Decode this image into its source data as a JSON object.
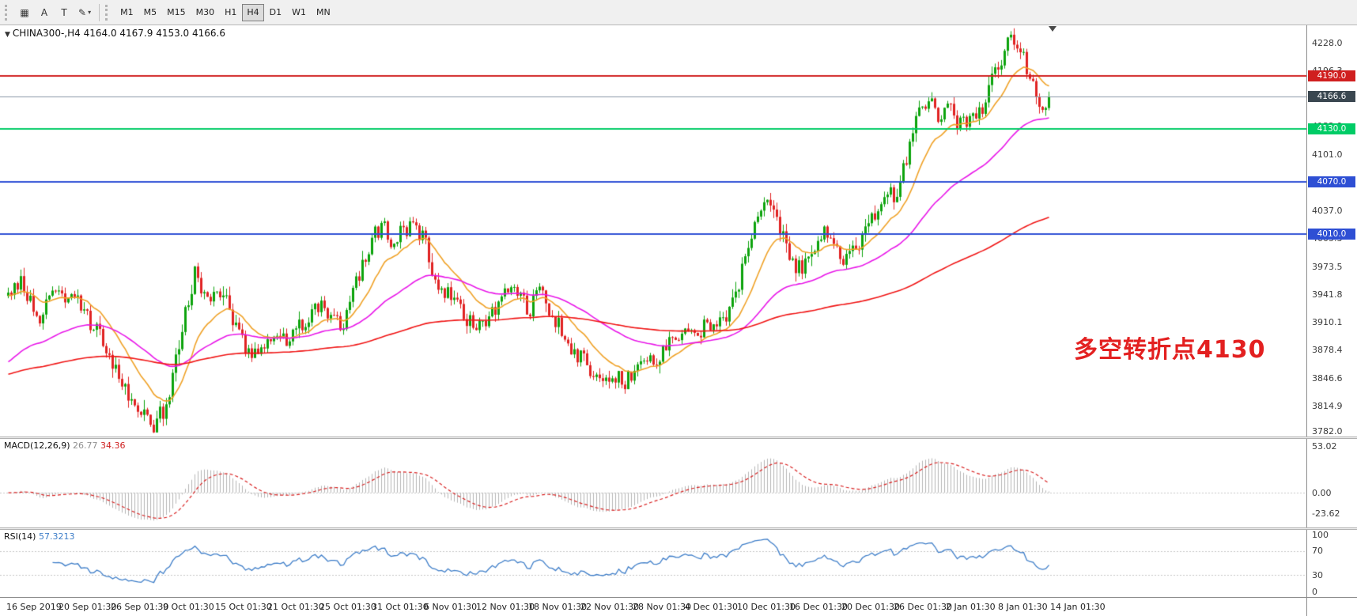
{
  "toolbar": {
    "tool_buttons": [
      {
        "name": "chart-grid-button",
        "glyph": "▦"
      },
      {
        "name": "text-tool-button",
        "glyph": "A"
      },
      {
        "name": "label-tool-button",
        "glyph": "T"
      },
      {
        "name": "draw-tool-button",
        "glyph": "✎",
        "dropdown": "▾"
      }
    ],
    "timeframes": [
      "M1",
      "M5",
      "M15",
      "M30",
      "H1",
      "H4",
      "D1",
      "W1",
      "MN"
    ],
    "active_timeframe": "H4"
  },
  "symbol_header": {
    "collapse_icon": "▼",
    "symbol": "CHINA300-,H4",
    "ohlc": "4164.0 4167.9 4153.0 4166.6"
  },
  "annotation": {
    "text": "多空转折点4130",
    "color": "#e32020"
  },
  "price_scale": {
    "min": 3780,
    "max": 4248,
    "ticks": [
      "4228.0",
      "4196.3",
      "4164.6",
      "4132.9",
      "4101.0",
      "4069.3",
      "4037.0",
      "4005.3",
      "3973.5",
      "3941.8",
      "3910.1",
      "3878.4",
      "3846.6",
      "3814.9",
      "3782.0"
    ]
  },
  "hlines": [
    {
      "price": 4190.0,
      "label": "4190.0",
      "color": "#d01f1f",
      "width": 2
    },
    {
      "price": 4130.0,
      "label": "4130.0",
      "color": "#00cc66",
      "width": 2
    },
    {
      "price": 4070.0,
      "label": "4070.0",
      "color": "#2e4fd4",
      "width": 2
    },
    {
      "price": 4010.0,
      "label": "4010.0",
      "color": "#2e4fd4",
      "width": 2
    }
  ],
  "current_price": {
    "value": 4166.6,
    "label": "4166.6",
    "line_color": "#8a98a8",
    "badge_color": "#3a4750"
  },
  "macd_panel": {
    "header": "MACD(12,26,9)",
    "value_hist": "26.77",
    "value_signal": "34.36",
    "range": {
      "min": -40,
      "max": 62
    },
    "scale_labels": [
      {
        "v": 53.02,
        "label": "53.02"
      },
      {
        "v": 0,
        "label": "0.00"
      },
      {
        "v": -23.62,
        "label": "-23.62"
      }
    ]
  },
  "rsi_panel": {
    "header": "RSI(14)",
    "value": "57.3213",
    "levels": [
      70,
      30
    ],
    "scale_labels": [
      {
        "v": 100,
        "label": "100"
      },
      {
        "v": 70,
        "label": "70"
      },
      {
        "v": 30,
        "label": "30"
      },
      {
        "v": 0,
        "label": "0"
      }
    ]
  },
  "time_axis": {
    "labels": [
      "16 Sep 2019",
      "20 Sep 01:30",
      "26 Sep 01:30",
      "9 Oct 01:30",
      "15 Oct 01:30",
      "21 Oct 01:30",
      "25 Oct 01:30",
      "31 Oct 01:30",
      "6 Nov 01:30",
      "12 Nov 01:30",
      "18 Nov 01:30",
      "22 Nov 01:30",
      "28 Nov 01:30",
      "4 Dec 01:30",
      "10 Dec 01:30",
      "16 Dec 01:30",
      "20 Dec 01:30",
      "26 Dec 01:30",
      "2 Jan 01:30",
      "8 Jan 01:30",
      "14 Jan 01:30"
    ]
  },
  "chart_data": {
    "type": "candlestick-ohlc",
    "symbol": "CHINA300-",
    "timeframe": "H4",
    "bar_count": 330,
    "seed": 20200117,
    "last_close": 4166.6,
    "last_ohlc": [
      4164.0,
      4167.9,
      4153.0,
      4166.6
    ],
    "price_range_shown": [
      3782.0,
      4228.0
    ],
    "price_waypoints": [
      [
        0,
        3940
      ],
      [
        4,
        3955
      ],
      [
        10,
        3908
      ],
      [
        14,
        3948
      ],
      [
        17,
        3935
      ],
      [
        21,
        3948
      ],
      [
        26,
        3912
      ],
      [
        33,
        3868
      ],
      [
        38,
        3830
      ],
      [
        43,
        3803
      ],
      [
        46,
        3790
      ],
      [
        50,
        3818
      ],
      [
        53,
        3860
      ],
      [
        56,
        3920
      ],
      [
        59,
        3965
      ],
      [
        63,
        3935
      ],
      [
        66,
        3948
      ],
      [
        69,
        3930
      ],
      [
        73,
        3900
      ],
      [
        76,
        3878
      ],
      [
        79,
        3868
      ],
      [
        82,
        3890
      ],
      [
        86,
        3902
      ],
      [
        89,
        3885
      ],
      [
        92,
        3906
      ],
      [
        96,
        3920
      ],
      [
        99,
        3930
      ],
      [
        102,
        3918
      ],
      [
        106,
        3903
      ],
      [
        109,
        3945
      ],
      [
        112,
        3978
      ],
      [
        115,
        4005
      ],
      [
        119,
        4022
      ],
      [
        122,
        3995
      ],
      [
        125,
        4012
      ],
      [
        129,
        4022
      ],
      [
        132,
        4000
      ],
      [
        135,
        3962
      ],
      [
        139,
        3942
      ],
      [
        142,
        3928
      ],
      [
        145,
        3912
      ],
      [
        148,
        3904
      ],
      [
        152,
        3916
      ],
      [
        155,
        3936
      ],
      [
        158,
        3952
      ],
      [
        162,
        3940
      ],
      [
        165,
        3920
      ],
      [
        168,
        3948
      ],
      [
        171,
        3928
      ],
      [
        175,
        3895
      ],
      [
        178,
        3878
      ],
      [
        182,
        3865
      ],
      [
        185,
        3852
      ],
      [
        188,
        3838
      ],
      [
        191,
        3850
      ],
      [
        195,
        3843
      ],
      [
        198,
        3856
      ],
      [
        201,
        3868
      ],
      [
        205,
        3862
      ],
      [
        208,
        3880
      ],
      [
        211,
        3896
      ],
      [
        214,
        3905
      ],
      [
        218,
        3896
      ],
      [
        221,
        3910
      ],
      [
        224,
        3904
      ],
      [
        228,
        3922
      ],
      [
        231,
        3958
      ],
      [
        234,
        4000
      ],
      [
        238,
        4038
      ],
      [
        241,
        4046
      ],
      [
        244,
        4012
      ],
      [
        248,
        3982
      ],
      [
        251,
        3968
      ],
      [
        254,
        3996
      ],
      [
        258,
        4012
      ],
      [
        261,
        3990
      ],
      [
        264,
        3980
      ],
      [
        268,
        4000
      ],
      [
        271,
        4016
      ],
      [
        274,
        4030
      ],
      [
        278,
        4048
      ],
      [
        282,
        4068
      ],
      [
        285,
        4105
      ],
      [
        288,
        4148
      ],
      [
        291,
        4165
      ],
      [
        294,
        4142
      ],
      [
        297,
        4155
      ],
      [
        300,
        4135
      ],
      [
        304,
        4140
      ],
      [
        308,
        4160
      ],
      [
        312,
        4190
      ],
      [
        315,
        4225
      ],
      [
        317,
        4238
      ],
      [
        319,
        4230
      ],
      [
        322,
        4200
      ],
      [
        325,
        4172
      ],
      [
        327,
        4158
      ],
      [
        329,
        4166.6
      ]
    ],
    "moving_averages": [
      {
        "period": 16,
        "init": 3940,
        "color": "#efa126"
      },
      {
        "period": 55,
        "init": 3862,
        "color": "#e816e8"
      },
      {
        "period": 200,
        "init": 3850,
        "color": "#f01414"
      }
    ],
    "colors": {
      "up": "#0ca30c",
      "down": "#e02222",
      "macd_hist": "#b5b5b5",
      "macd_signal": "#d82020",
      "rsi": "#3d7dc8"
    }
  }
}
